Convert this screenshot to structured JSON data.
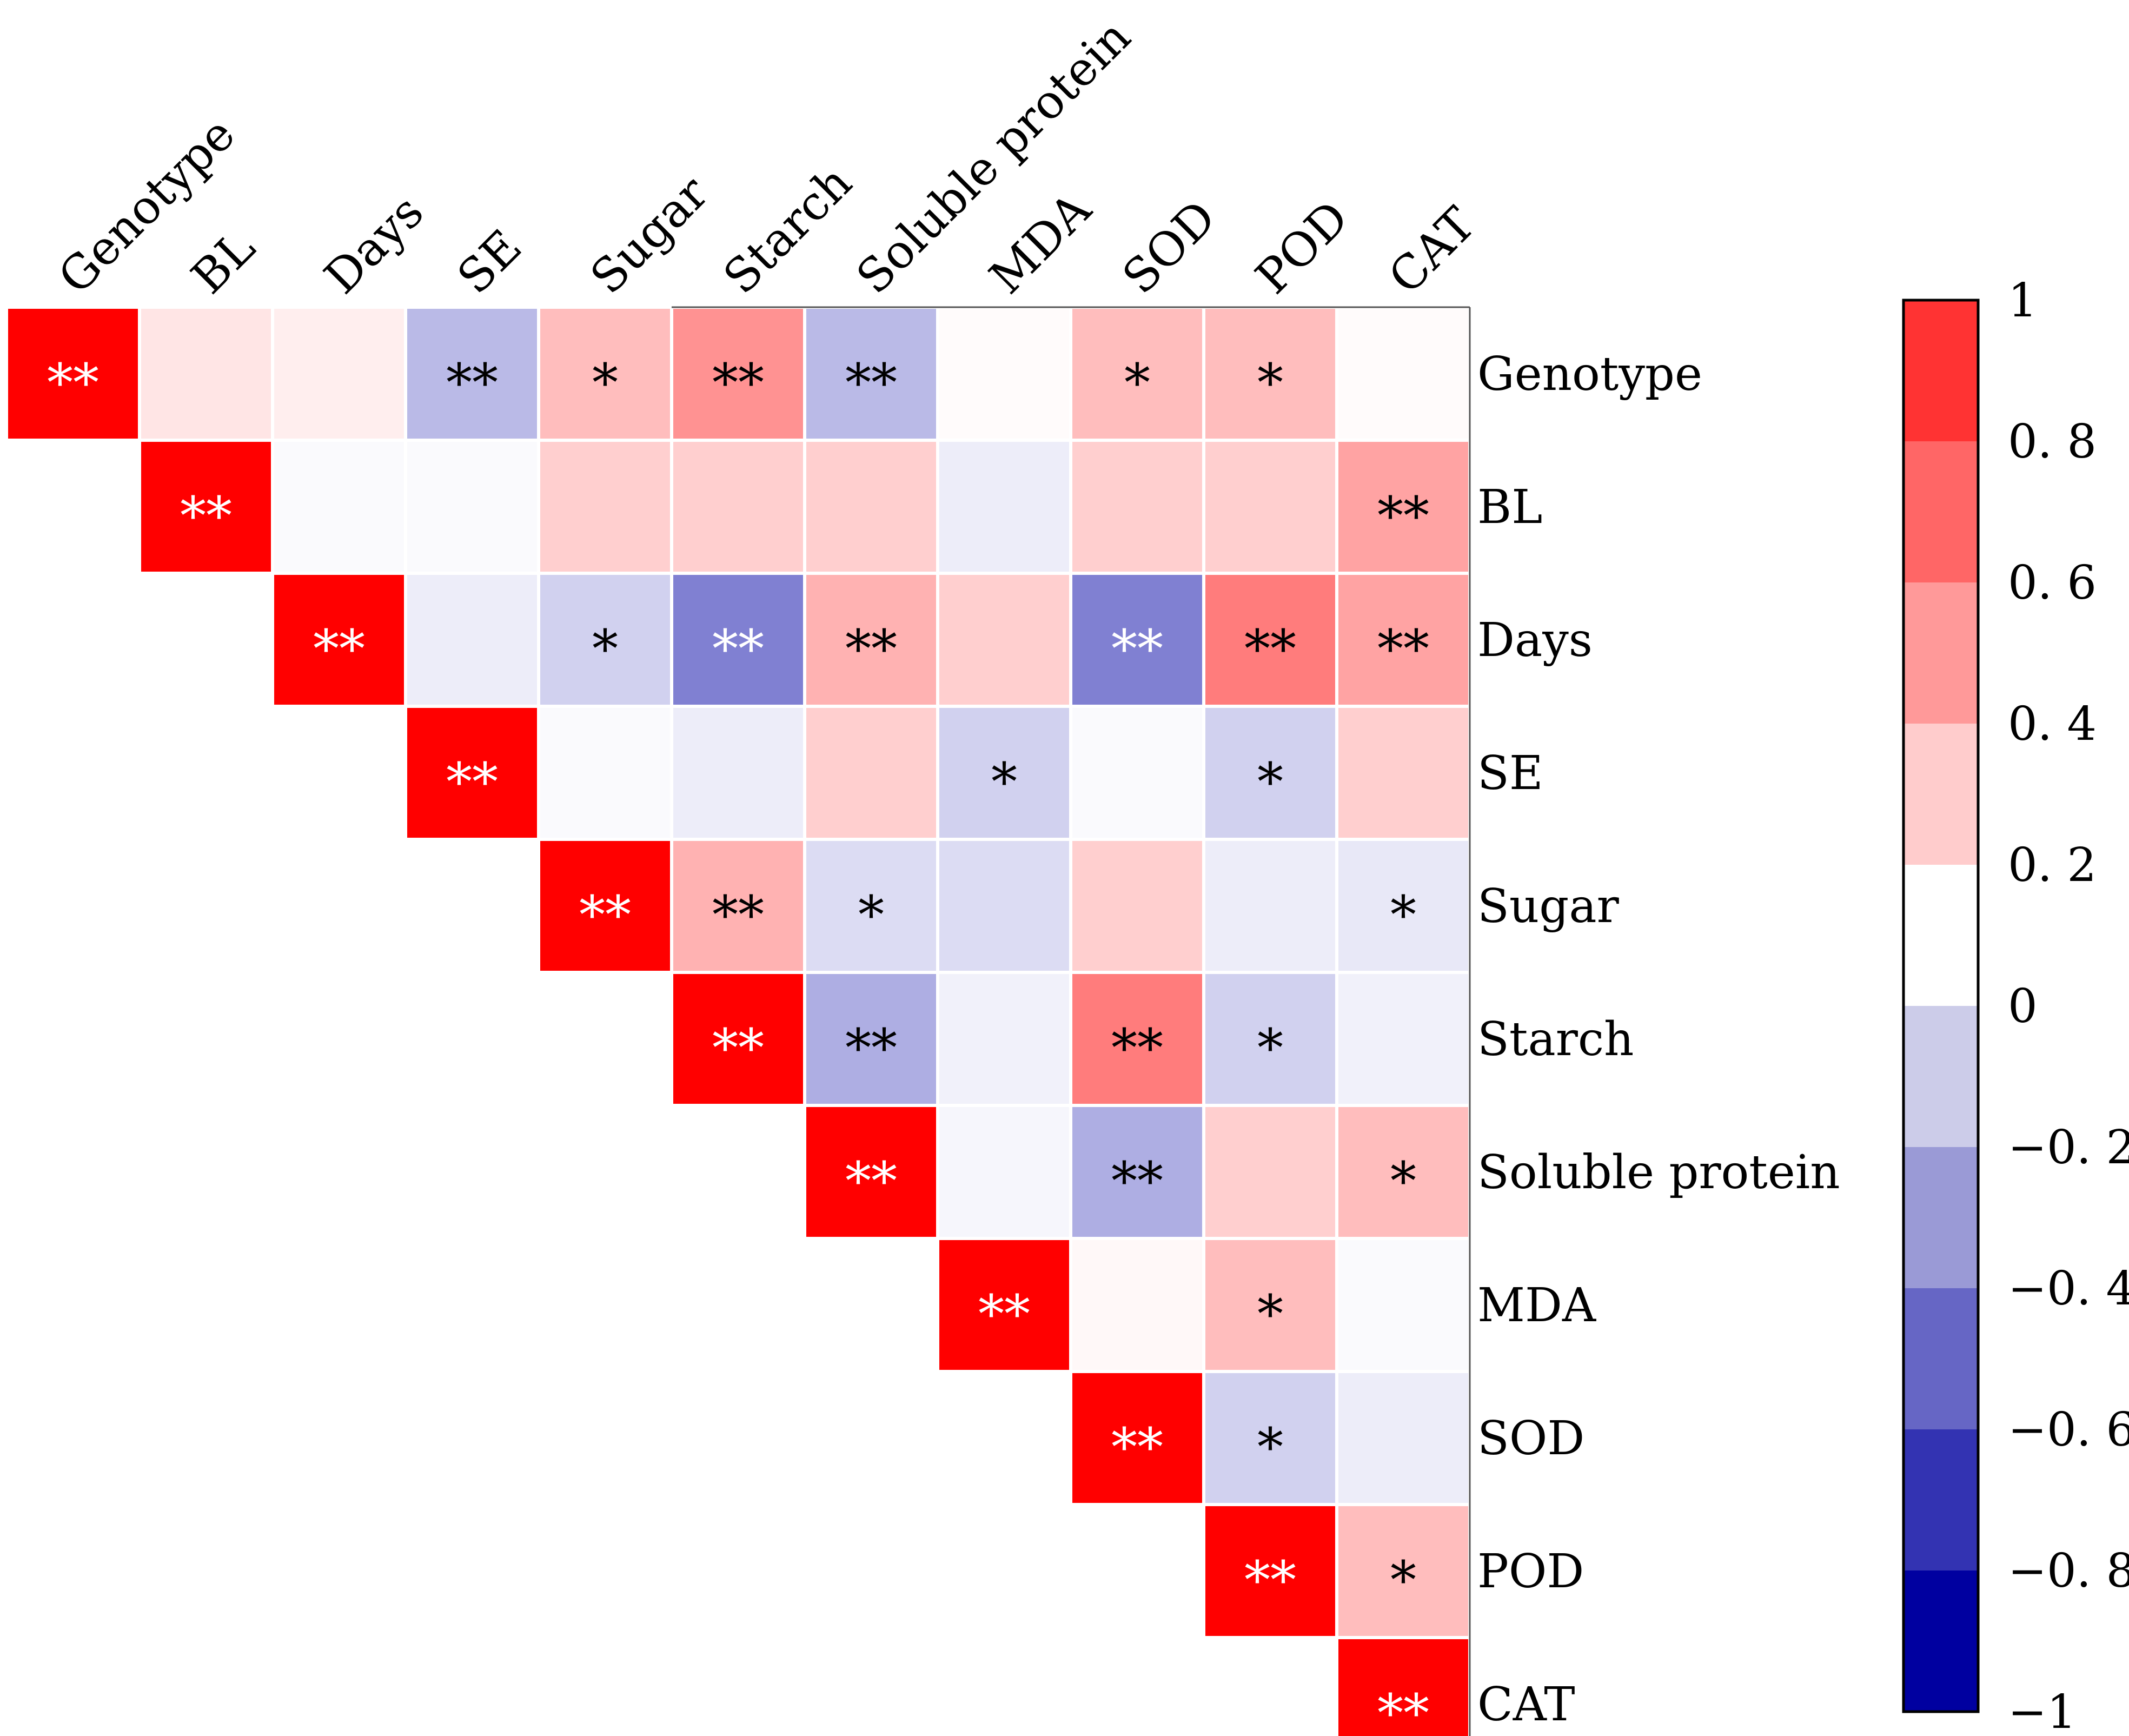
{
  "chart_data": {
    "type": "heatmap",
    "title": "",
    "variables": [
      "Genotype",
      "BL",
      "Days",
      "SE",
      "Sugar",
      "Starch",
      "Soluble protein",
      "MDA",
      "SOD",
      "POD",
      "CAT"
    ],
    "matrix_shape": "upper-triangle",
    "value_range": [
      -1,
      1
    ],
    "cells": [
      {
        "row": "Genotype",
        "col": "Genotype",
        "value": 1.0,
        "sig": "**"
      },
      {
        "row": "Genotype",
        "col": "BL",
        "value": 0.12,
        "sig": ""
      },
      {
        "row": "Genotype",
        "col": "Days",
        "value": 0.08,
        "sig": ""
      },
      {
        "row": "Genotype",
        "col": "SE",
        "value": -0.3,
        "sig": "**"
      },
      {
        "row": "Genotype",
        "col": "Sugar",
        "value": 0.3,
        "sig": "*"
      },
      {
        "row": "Genotype",
        "col": "Starch",
        "value": 0.5,
        "sig": "**"
      },
      {
        "row": "Genotype",
        "col": "Soluble protein",
        "value": -0.3,
        "sig": "**"
      },
      {
        "row": "Genotype",
        "col": "MDA",
        "value": 0.02,
        "sig": ""
      },
      {
        "row": "Genotype",
        "col": "SOD",
        "value": 0.3,
        "sig": "*"
      },
      {
        "row": "Genotype",
        "col": "POD",
        "value": 0.3,
        "sig": "*"
      },
      {
        "row": "Genotype",
        "col": "CAT",
        "value": 0.02,
        "sig": ""
      },
      {
        "row": "BL",
        "col": "BL",
        "value": 1.0,
        "sig": "**"
      },
      {
        "row": "BL",
        "col": "Days",
        "value": -0.02,
        "sig": ""
      },
      {
        "row": "BL",
        "col": "SE",
        "value": -0.02,
        "sig": ""
      },
      {
        "row": "BL",
        "col": "Sugar",
        "value": 0.22,
        "sig": ""
      },
      {
        "row": "BL",
        "col": "Starch",
        "value": 0.22,
        "sig": ""
      },
      {
        "row": "BL",
        "col": "Soluble protein",
        "value": 0.22,
        "sig": ""
      },
      {
        "row": "BL",
        "col": "MDA",
        "value": -0.08,
        "sig": ""
      },
      {
        "row": "BL",
        "col": "SOD",
        "value": 0.22,
        "sig": ""
      },
      {
        "row": "BL",
        "col": "POD",
        "value": 0.22,
        "sig": ""
      },
      {
        "row": "BL",
        "col": "CAT",
        "value": 0.42,
        "sig": "**"
      },
      {
        "row": "Days",
        "col": "Days",
        "value": 1.0,
        "sig": "**"
      },
      {
        "row": "Days",
        "col": "SE",
        "value": -0.08,
        "sig": ""
      },
      {
        "row": "Days",
        "col": "Sugar",
        "value": -0.2,
        "sig": "*"
      },
      {
        "row": "Days",
        "col": "Starch",
        "value": -0.55,
        "sig": "**"
      },
      {
        "row": "Days",
        "col": "Soluble protein",
        "value": 0.35,
        "sig": "**"
      },
      {
        "row": "Days",
        "col": "MDA",
        "value": 0.22,
        "sig": ""
      },
      {
        "row": "Days",
        "col": "SOD",
        "value": -0.55,
        "sig": "**"
      },
      {
        "row": "Days",
        "col": "POD",
        "value": 0.6,
        "sig": "**"
      },
      {
        "row": "Days",
        "col": "CAT",
        "value": 0.42,
        "sig": "**"
      },
      {
        "row": "SE",
        "col": "SE",
        "value": 1.0,
        "sig": "**"
      },
      {
        "row": "SE",
        "col": "Sugar",
        "value": -0.02,
        "sig": ""
      },
      {
        "row": "SE",
        "col": "Starch",
        "value": -0.08,
        "sig": ""
      },
      {
        "row": "SE",
        "col": "Soluble protein",
        "value": 0.22,
        "sig": ""
      },
      {
        "row": "SE",
        "col": "MDA",
        "value": -0.2,
        "sig": "*"
      },
      {
        "row": "SE",
        "col": "SOD",
        "value": -0.02,
        "sig": ""
      },
      {
        "row": "SE",
        "col": "POD",
        "value": -0.2,
        "sig": "*"
      },
      {
        "row": "SE",
        "col": "CAT",
        "value": 0.22,
        "sig": ""
      },
      {
        "row": "Sugar",
        "col": "Sugar",
        "value": 1.0,
        "sig": "**"
      },
      {
        "row": "Sugar",
        "col": "Starch",
        "value": 0.35,
        "sig": "**"
      },
      {
        "row": "Sugar",
        "col": "Soluble protein",
        "value": -0.15,
        "sig": "*"
      },
      {
        "row": "Sugar",
        "col": "MDA",
        "value": -0.15,
        "sig": ""
      },
      {
        "row": "Sugar",
        "col": "SOD",
        "value": 0.22,
        "sig": ""
      },
      {
        "row": "Sugar",
        "col": "POD",
        "value": -0.08,
        "sig": ""
      },
      {
        "row": "Sugar",
        "col": "CAT",
        "value": -0.1,
        "sig": "*"
      },
      {
        "row": "Starch",
        "col": "Starch",
        "value": 1.0,
        "sig": "**"
      },
      {
        "row": "Starch",
        "col": "Soluble protein",
        "value": -0.35,
        "sig": "**"
      },
      {
        "row": "Starch",
        "col": "MDA",
        "value": -0.06,
        "sig": ""
      },
      {
        "row": "Starch",
        "col": "SOD",
        "value": 0.6,
        "sig": "**"
      },
      {
        "row": "Starch",
        "col": "POD",
        "value": -0.2,
        "sig": "*"
      },
      {
        "row": "Starch",
        "col": "CAT",
        "value": -0.06,
        "sig": ""
      },
      {
        "row": "Soluble protein",
        "col": "Soluble protein",
        "value": 1.0,
        "sig": "**"
      },
      {
        "row": "Soluble protein",
        "col": "MDA",
        "value": -0.04,
        "sig": ""
      },
      {
        "row": "Soluble protein",
        "col": "SOD",
        "value": -0.35,
        "sig": "**"
      },
      {
        "row": "Soluble protein",
        "col": "POD",
        "value": 0.22,
        "sig": ""
      },
      {
        "row": "Soluble protein",
        "col": "CAT",
        "value": 0.3,
        "sig": "*"
      },
      {
        "row": "MDA",
        "col": "MDA",
        "value": 1.0,
        "sig": "**"
      },
      {
        "row": "MDA",
        "col": "SOD",
        "value": 0.03,
        "sig": ""
      },
      {
        "row": "MDA",
        "col": "POD",
        "value": 0.3,
        "sig": "*"
      },
      {
        "row": "MDA",
        "col": "CAT",
        "value": -0.02,
        "sig": ""
      },
      {
        "row": "SOD",
        "col": "SOD",
        "value": 1.0,
        "sig": "**"
      },
      {
        "row": "SOD",
        "col": "POD",
        "value": -0.2,
        "sig": "*"
      },
      {
        "row": "SOD",
        "col": "CAT",
        "value": -0.08,
        "sig": ""
      },
      {
        "row": "POD",
        "col": "POD",
        "value": 1.0,
        "sig": "**"
      },
      {
        "row": "POD",
        "col": "CAT",
        "value": 0.3,
        "sig": "*"
      },
      {
        "row": "CAT",
        "col": "CAT",
        "value": 1.0,
        "sig": "**"
      }
    ],
    "colorbar": {
      "ticks": [
        {
          "value": 1,
          "label": "1"
        },
        {
          "value": 0.8,
          "label": "0. 8"
        },
        {
          "value": 0.6,
          "label": "0. 6"
        },
        {
          "value": 0.4,
          "label": "0. 4"
        },
        {
          "value": 0.2,
          "label": "0. 2"
        },
        {
          "value": 0,
          "label": "0"
        },
        {
          "value": -0.2,
          "label": "−0. 2"
        },
        {
          "value": -0.4,
          "label": "−0. 4"
        },
        {
          "value": -0.6,
          "label": "−0. 6"
        },
        {
          "value": -0.8,
          "label": "−0. 8"
        },
        {
          "value": -1,
          "label": "−1"
        }
      ],
      "bands": [
        {
          "from": 0.8,
          "to": 1.0,
          "color": "#ff3333"
        },
        {
          "from": 0.6,
          "to": 0.8,
          "color": "#ff6666"
        },
        {
          "from": 0.4,
          "to": 0.6,
          "color": "#ff9999"
        },
        {
          "from": 0.2,
          "to": 0.4,
          "color": "#ffcccc"
        },
        {
          "from": 0.0,
          "to": 0.2,
          "color": "#ffffff"
        },
        {
          "from": -0.2,
          "to": 0.0,
          "color": "#cccce9"
        },
        {
          "from": -0.4,
          "to": -0.2,
          "color": "#9a9ad6"
        },
        {
          "from": -0.6,
          "to": -0.4,
          "color": "#6666c5"
        },
        {
          "from": -0.8,
          "to": -0.6,
          "color": "#3333b2"
        },
        {
          "from": -1.0,
          "to": -0.8,
          "color": "#0000a0"
        }
      ]
    }
  }
}
